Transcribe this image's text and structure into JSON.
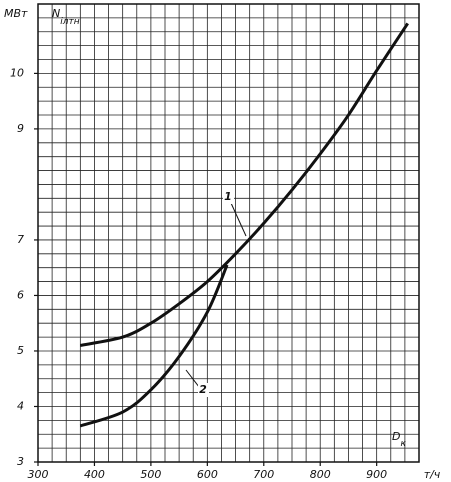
{
  "chart_data": {
    "type": "line",
    "ylabel": "N",
    "ylabel_sub": "iлтн",
    "yunit": "МВт",
    "xlabel": "D",
    "xlabel_sub": "к",
    "xunit": "т/ч",
    "xlim": [
      300,
      975
    ],
    "ylim": [
      3,
      11.25
    ],
    "xticks": [
      300,
      400,
      500,
      600,
      700,
      800,
      900
    ],
    "yticks": [
      3,
      4,
      5,
      6,
      7,
      9,
      10
    ],
    "grid": {
      "x": 25,
      "y": 0.25
    },
    "series": [
      {
        "name": "1",
        "color": "#111111",
        "x": [
          375,
          450,
          500,
          550,
          600,
          650,
          700,
          750,
          800,
          850,
          900,
          955
        ],
        "values": [
          5.1,
          5.25,
          5.5,
          5.85,
          6.25,
          6.75,
          7.3,
          7.9,
          8.55,
          9.25,
          10.05,
          10.9
        ]
      },
      {
        "name": "2",
        "color": "#111111",
        "x": [
          375,
          450,
          500,
          550,
          600,
          635
        ],
        "values": [
          3.65,
          3.9,
          4.3,
          4.9,
          5.7,
          6.55
        ]
      }
    ]
  }
}
